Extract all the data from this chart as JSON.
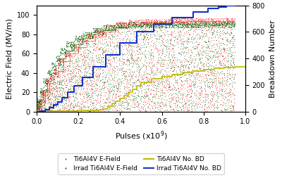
{
  "ylabel_left": "Electric Field (MV/m)",
  "ylabel_right": "Breakdown Number",
  "xlim": [
    0,
    1.0
  ],
  "ylim_left": [
    0,
    110
  ],
  "ylim_right": [
    0,
    800
  ],
  "xticks": [
    0.0,
    0.2,
    0.4,
    0.6,
    0.8,
    1.0
  ],
  "yticks_left": [
    0,
    20,
    40,
    60,
    80,
    100
  ],
  "yticks_right": [
    0,
    200,
    400,
    600,
    800
  ],
  "color_red": "#FF2020",
  "color_green": "#006400",
  "color_yellow": "#BBBB00",
  "color_blue": "#1133CC",
  "background_color": "#ffffff",
  "legend_labels": [
    "Ti6Al4V E-Field",
    "Irrad Ti6Al4V E-Field",
    "Ti6Al4V No. BD",
    "Irrad Ti6Al4V No. BD"
  ],
  "red_steps_x": [
    0.0,
    0.02,
    0.04,
    0.06,
    0.08,
    0.1,
    0.13,
    0.16,
    0.2,
    0.24,
    0.28,
    0.33,
    0.38,
    0.44,
    0.5,
    0.57,
    0.64,
    0.72,
    0.8,
    0.88,
    0.95
  ],
  "red_steps_y": [
    0,
    10,
    20,
    30,
    36,
    42,
    52,
    60,
    67,
    73,
    78,
    83,
    87,
    90,
    92,
    93,
    93,
    94,
    94,
    94,
    94
  ],
  "green_steps_x": [
    0.0,
    0.015,
    0.03,
    0.05,
    0.07,
    0.09,
    0.11,
    0.14,
    0.18,
    0.22,
    0.27,
    0.32,
    0.38,
    0.44,
    0.51,
    0.58,
    0.66,
    0.74,
    0.82,
    0.9,
    0.95
  ],
  "green_steps_y": [
    0,
    12,
    22,
    32,
    40,
    48,
    55,
    63,
    70,
    76,
    80,
    84,
    87,
    89,
    90,
    90,
    90,
    90,
    90,
    90,
    90
  ],
  "yellow_bd_x": [
    0.0,
    0.05,
    0.1,
    0.15,
    0.2,
    0.25,
    0.3,
    0.32,
    0.34,
    0.36,
    0.38,
    0.4,
    0.42,
    0.44,
    0.46,
    0.48,
    0.5,
    0.55,
    0.6,
    0.65,
    0.7,
    0.75,
    0.8,
    0.85,
    0.9,
    0.95,
    1.0
  ],
  "yellow_bd_y": [
    0,
    2,
    4,
    6,
    8,
    10,
    15,
    20,
    40,
    60,
    80,
    100,
    120,
    145,
    170,
    195,
    220,
    245,
    265,
    280,
    295,
    305,
    315,
    325,
    330,
    335,
    340
  ],
  "blue_bd_x": [
    0.0,
    0.02,
    0.04,
    0.06,
    0.08,
    0.1,
    0.12,
    0.15,
    0.18,
    0.22,
    0.27,
    0.33,
    0.4,
    0.48,
    0.56,
    0.65,
    0.75,
    0.82,
    0.87,
    0.91,
    0.95,
    1.0
  ],
  "blue_bd_y": [
    0,
    5,
    15,
    30,
    50,
    75,
    105,
    145,
    195,
    260,
    340,
    430,
    520,
    600,
    660,
    710,
    750,
    775,
    790,
    800,
    810,
    820
  ]
}
